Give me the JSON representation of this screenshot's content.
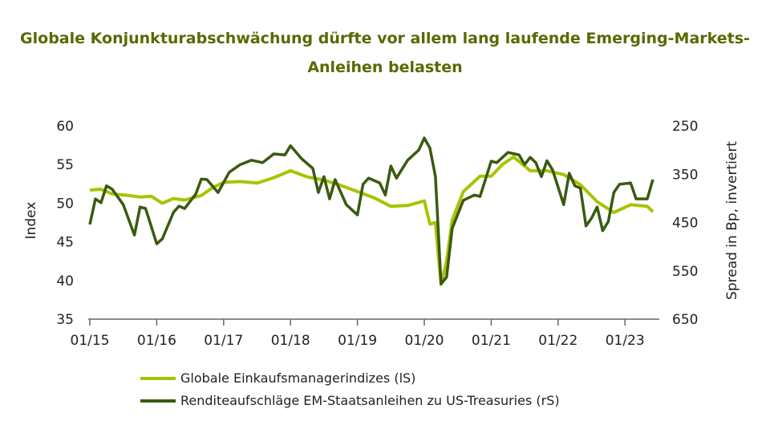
{
  "title": "Globale Konjunkturabschwächung dürfte vor allem lang laufende Emerging-Markets-Anleihen belasten",
  "chart_data": {
    "type": "line",
    "title": "Globale Konjunkturabschwächung dürfte vor allem lang laufende Emerging-Markets-Anleihen belasten",
    "xlabel": "",
    "ylabel": "Index",
    "y2label": "Spread in Bp, invertiert",
    "x_ticks": [
      "01/15",
      "01/16",
      "01/17",
      "01/18",
      "01/19",
      "01/20",
      "01/21",
      "01/22",
      "01/23"
    ],
    "ylim": [
      35,
      60
    ],
    "y_ticks": [
      "35",
      "40",
      "45",
      "50",
      "55",
      "60"
    ],
    "y2lim": [
      250,
      650
    ],
    "y2_inverted": true,
    "y2_ticks": [
      "250",
      "350",
      "450",
      "550",
      "650"
    ],
    "grid": false,
    "legend_position": "bottom",
    "series": [
      {
        "name": "Globale Einkaufsmanagerindizes (lS)",
        "axis": "left",
        "color": "#a8c400",
        "points": [
          [
            "2015-01",
            51.7
          ],
          [
            "2015-03",
            51.8
          ],
          [
            "2015-05",
            51.2
          ],
          [
            "2015-08",
            51.0
          ],
          [
            "2015-10",
            50.8
          ],
          [
            "2015-12",
            50.9
          ],
          [
            "2016-02",
            50.0
          ],
          [
            "2016-04",
            50.6
          ],
          [
            "2016-06",
            50.4
          ],
          [
            "2016-09",
            51.0
          ],
          [
            "2016-11",
            52.0
          ],
          [
            "2017-01",
            52.7
          ],
          [
            "2017-04",
            52.8
          ],
          [
            "2017-07",
            52.6
          ],
          [
            "2017-10",
            53.3
          ],
          [
            "2018-01",
            54.2
          ],
          [
            "2018-04",
            53.4
          ],
          [
            "2018-07",
            53.0
          ],
          [
            "2018-10",
            52.3
          ],
          [
            "2019-01",
            51.5
          ],
          [
            "2019-04",
            50.7
          ],
          [
            "2019-07",
            49.6
          ],
          [
            "2019-10",
            49.7
          ],
          [
            "2020-01",
            50.3
          ],
          [
            "2020-02",
            47.3
          ],
          [
            "2020-03",
            47.5
          ],
          [
            "2020-04",
            39.5
          ],
          [
            "2020-05",
            42.5
          ],
          [
            "2020-06",
            47.8
          ],
          [
            "2020-08",
            51.5
          ],
          [
            "2020-11",
            53.5
          ],
          [
            "2021-01",
            53.5
          ],
          [
            "2021-03",
            55.0
          ],
          [
            "2021-05",
            56.0
          ],
          [
            "2021-08",
            54.2
          ],
          [
            "2021-11",
            54.2
          ],
          [
            "2022-02",
            53.7
          ],
          [
            "2022-05",
            52.4
          ],
          [
            "2022-08",
            50.2
          ],
          [
            "2022-11",
            48.8
          ],
          [
            "2023-02",
            49.8
          ],
          [
            "2023-05",
            49.6
          ],
          [
            "2023-06",
            48.9
          ]
        ]
      },
      {
        "name": "Renditeaufschläge EM-Staatsanleihen zu US-Treasuries (rS)",
        "axis": "right",
        "color": "#3a5a10",
        "points": [
          [
            "2015-01",
            454
          ],
          [
            "2015-02",
            401
          ],
          [
            "2015-03",
            409
          ],
          [
            "2015-04",
            374
          ],
          [
            "2015-05",
            381
          ],
          [
            "2015-07",
            413
          ],
          [
            "2015-09",
            476
          ],
          [
            "2015-10",
            418
          ],
          [
            "2015-11",
            421
          ],
          [
            "2016-01",
            494
          ],
          [
            "2016-02",
            484
          ],
          [
            "2016-04",
            429
          ],
          [
            "2016-05",
            416
          ],
          [
            "2016-06",
            421
          ],
          [
            "2016-08",
            391
          ],
          [
            "2016-09",
            360
          ],
          [
            "2016-10",
            361
          ],
          [
            "2016-12",
            388
          ],
          [
            "2017-02",
            346
          ],
          [
            "2017-04",
            330
          ],
          [
            "2017-06",
            321
          ],
          [
            "2017-08",
            326
          ],
          [
            "2017-10",
            308
          ],
          [
            "2017-12",
            310
          ],
          [
            "2018-01",
            291
          ],
          [
            "2018-03",
            318
          ],
          [
            "2018-05",
            338
          ],
          [
            "2018-06",
            388
          ],
          [
            "2018-07",
            355
          ],
          [
            "2018-08",
            401
          ],
          [
            "2018-09",
            361
          ],
          [
            "2018-11",
            413
          ],
          [
            "2019-01",
            434
          ],
          [
            "2019-02",
            371
          ],
          [
            "2019-03",
            358
          ],
          [
            "2019-05",
            368
          ],
          [
            "2019-06",
            393
          ],
          [
            "2019-07",
            333
          ],
          [
            "2019-08",
            358
          ],
          [
            "2019-10",
            321
          ],
          [
            "2019-12",
            300
          ],
          [
            "2020-01",
            275
          ],
          [
            "2020-02",
            296
          ],
          [
            "2020-03",
            355
          ],
          [
            "2020-04",
            577
          ],
          [
            "2020-05",
            563
          ],
          [
            "2020-06",
            462
          ],
          [
            "2020-08",
            404
          ],
          [
            "2020-10",
            393
          ],
          [
            "2020-11",
            396
          ],
          [
            "2021-01",
            323
          ],
          [
            "2021-02",
            326
          ],
          [
            "2021-04",
            305
          ],
          [
            "2021-06",
            310
          ],
          [
            "2021-07",
            330
          ],
          [
            "2021-08",
            315
          ],
          [
            "2021-09",
            326
          ],
          [
            "2021-10",
            355
          ],
          [
            "2021-11",
            322
          ],
          [
            "2021-12",
            341
          ],
          [
            "2022-02",
            413
          ],
          [
            "2022-03",
            348
          ],
          [
            "2022-04",
            374
          ],
          [
            "2022-05",
            379
          ],
          [
            "2022-06",
            457
          ],
          [
            "2022-07",
            441
          ],
          [
            "2022-08",
            418
          ],
          [
            "2022-09",
            467
          ],
          [
            "2022-10",
            448
          ],
          [
            "2022-11",
            388
          ],
          [
            "2022-12",
            371
          ],
          [
            "2023-02",
            368
          ],
          [
            "2023-03",
            401
          ],
          [
            "2023-05",
            401
          ],
          [
            "2023-06",
            361
          ]
        ]
      }
    ]
  }
}
